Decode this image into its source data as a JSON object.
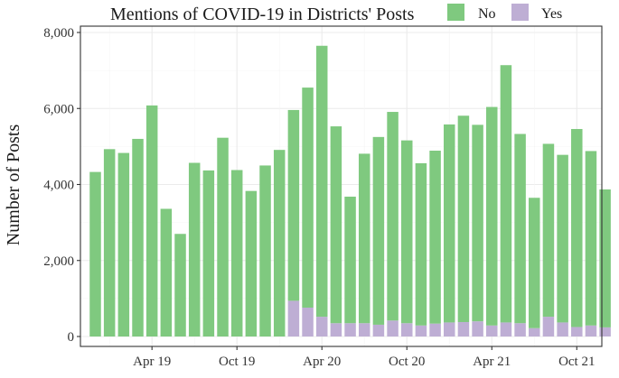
{
  "chart_data": {
    "type": "bar",
    "stacked": true,
    "legend": {
      "title": "Mentions of COVID-19 in Districts' Posts",
      "placement": "top",
      "entries": [
        "No",
        "Yes"
      ]
    },
    "xlabel": "",
    "ylabel": "Number of Posts",
    "ylim": [
      0,
      8000
    ],
    "y_ticks": [
      0,
      2000,
      4000,
      6000,
      8000
    ],
    "y_tick_labels": [
      "0",
      "2,000",
      "4,000",
      "6,000",
      "8,000"
    ],
    "x_tick_labels": [
      "Apr 19",
      "Oct 19",
      "Apr 20",
      "Oct 20",
      "Apr 21",
      "Oct 21"
    ],
    "x_tick_months": [
      "2019-04",
      "2019-10",
      "2020-04",
      "2020-10",
      "2021-04",
      "2021-10"
    ],
    "categories": [
      "2018-12",
      "2019-01",
      "2019-02",
      "2019-03",
      "2019-04",
      "2019-05",
      "2019-06",
      "2019-07",
      "2019-08",
      "2019-09",
      "2019-10",
      "2019-11",
      "2019-12",
      "2020-01",
      "2020-02",
      "2020-03",
      "2020-04",
      "2020-05",
      "2020-06",
      "2020-07",
      "2020-08",
      "2020-09",
      "2020-10",
      "2020-11",
      "2020-12",
      "2021-01",
      "2021-02",
      "2021-03",
      "2021-04",
      "2021-05",
      "2021-06",
      "2021-07",
      "2021-08",
      "2021-09",
      "2021-10",
      "2021-11",
      "2021-12"
    ],
    "series": [
      {
        "name": "No",
        "color": "#7fc97f",
        "values": [
          4330,
          4930,
          4830,
          5200,
          6080,
          3360,
          2700,
          4570,
          4370,
          5230,
          4380,
          3830,
          4500,
          4910,
          5020,
          5790,
          7130,
          5180,
          3330,
          4460,
          4940,
          5490,
          4810,
          4270,
          4550,
          5210,
          5430,
          5170,
          5750,
          6770,
          4980,
          3430,
          4550,
          4410,
          5210,
          4590,
          3630
        ]
      },
      {
        "name": "Yes",
        "color": "#beaed4",
        "values": [
          0,
          0,
          0,
          0,
          0,
          0,
          0,
          0,
          0,
          0,
          0,
          0,
          0,
          0,
          940,
          760,
          520,
          350,
          350,
          350,
          310,
          420,
          350,
          290,
          340,
          370,
          380,
          400,
          290,
          370,
          350,
          220,
          520,
          370,
          250,
          290,
          240
        ]
      }
    ],
    "grid": true
  }
}
